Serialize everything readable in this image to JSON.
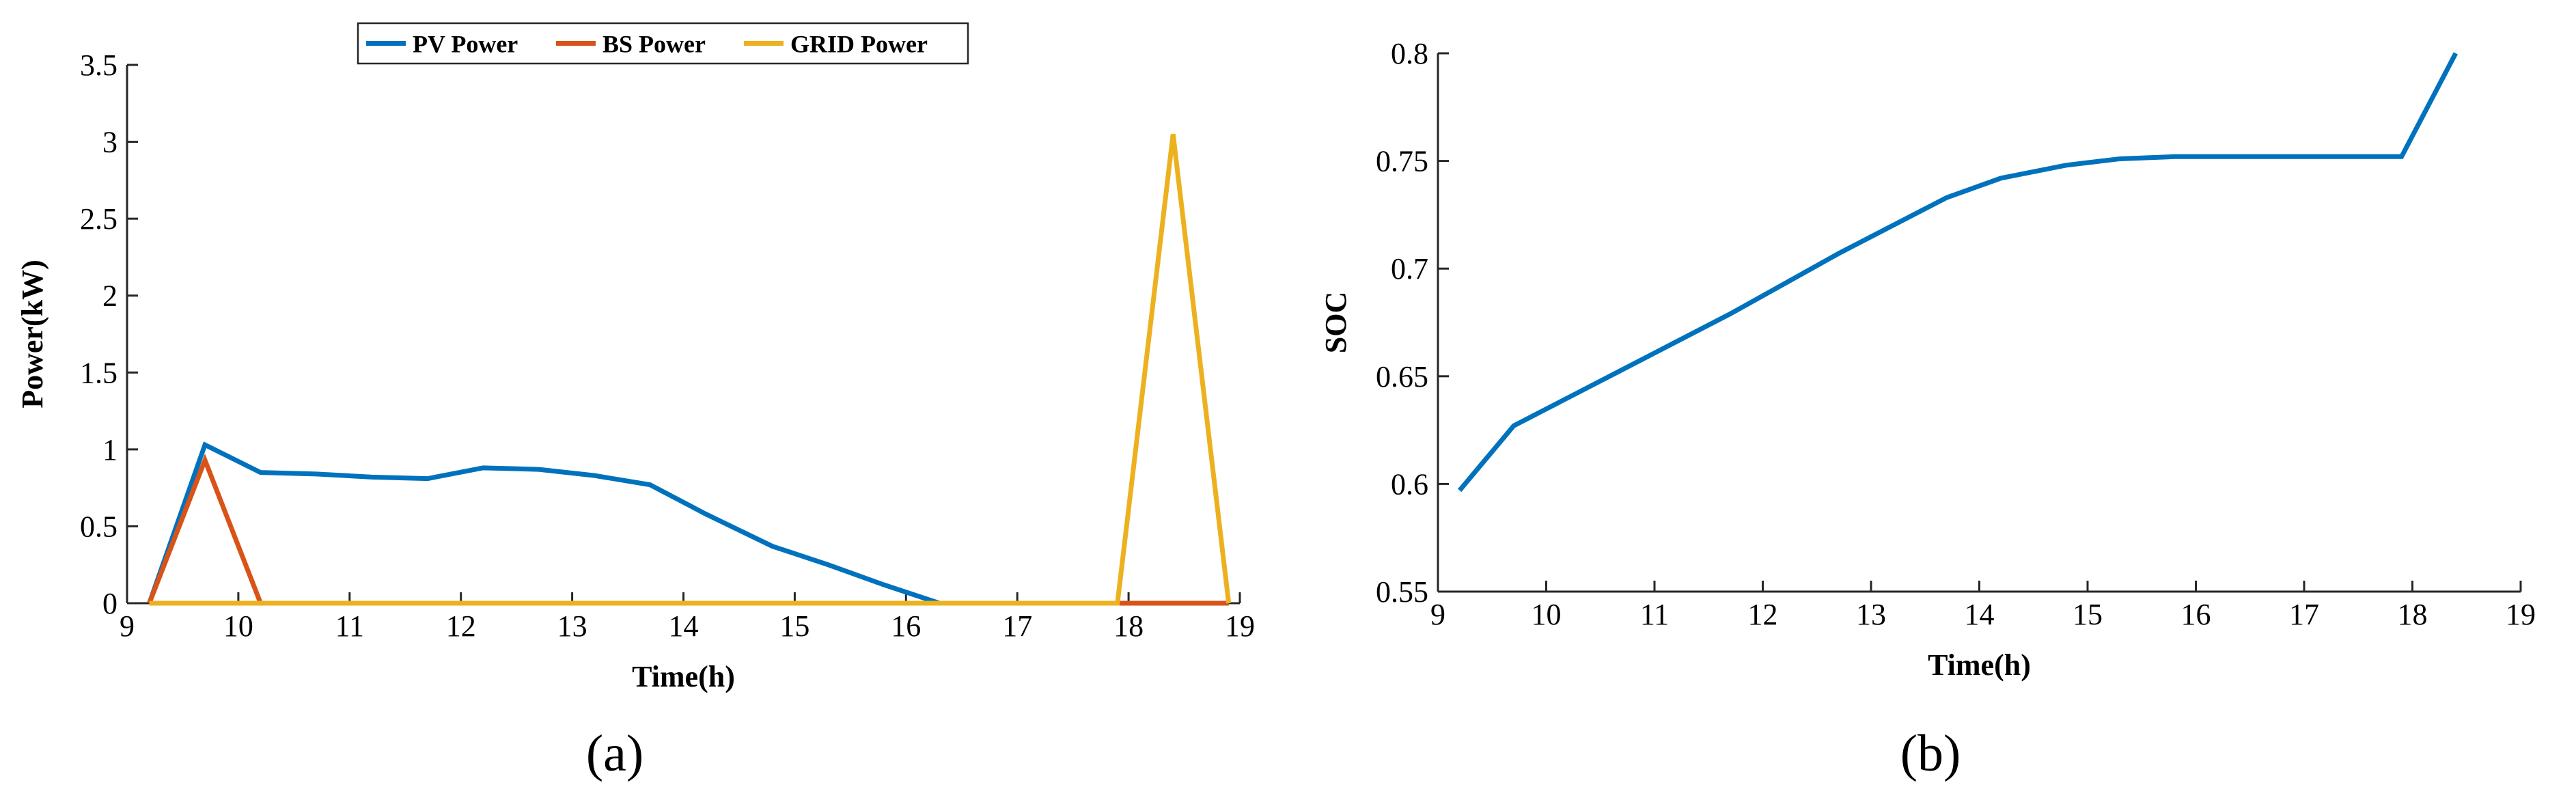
{
  "chart_data": [
    {
      "type": "line",
      "caption": "(a)",
      "xlabel": "Time(h)",
      "ylabel": "Power(kW)",
      "xlim": [
        9,
        19
      ],
      "ylim": [
        0,
        3.5
      ],
      "xticks": [
        9,
        10,
        11,
        12,
        13,
        14,
        15,
        16,
        17,
        18,
        19
      ],
      "yticks": [
        0,
        0.5,
        1,
        1.5,
        2,
        2.5,
        3,
        3.5
      ],
      "xtick_labels": [
        "9",
        "10",
        "11",
        "12",
        "13",
        "14",
        "15",
        "16",
        "17",
        "18",
        "19"
      ],
      "ytick_labels": [
        "0",
        "0.5",
        "1",
        "1.5",
        "2",
        "2.5",
        "3",
        "3.5"
      ],
      "legend_position": "top-center",
      "series": [
        {
          "name": "PV Power",
          "color": "#0072BD",
          "x": [
            9.2,
            9.7,
            10.2,
            10.7,
            11.2,
            11.7,
            12.2,
            12.7,
            13.2,
            13.7,
            14.2,
            14.8,
            15.3,
            15.8,
            16.3,
            16.8,
            17.3,
            17.9,
            18.4,
            18.9
          ],
          "y": [
            0,
            1.03,
            0.85,
            0.84,
            0.82,
            0.81,
            0.88,
            0.87,
            0.83,
            0.77,
            0.58,
            0.37,
            0.25,
            0.12,
            0,
            0,
            0,
            0,
            0,
            0
          ]
        },
        {
          "name": "BS Power",
          "color": "#D95319",
          "x": [
            9.2,
            9.7,
            10.2,
            10.7,
            11.2,
            11.7,
            12.2,
            12.7,
            13.2,
            13.7,
            14.2,
            14.8,
            15.3,
            15.8,
            16.3,
            16.8,
            17.3,
            17.9,
            18.4,
            18.9
          ],
          "y": [
            0,
            0.93,
            0,
            0,
            0,
            0,
            0,
            0,
            0,
            0,
            0,
            0,
            0,
            0,
            0,
            0,
            0,
            0,
            0,
            0
          ]
        },
        {
          "name": "GRID Power",
          "color": "#EDB120",
          "x": [
            9.2,
            9.7,
            10.2,
            10.7,
            11.2,
            11.7,
            12.2,
            12.7,
            13.2,
            13.7,
            14.2,
            14.8,
            15.3,
            15.8,
            16.3,
            16.8,
            17.3,
            17.9,
            18.4,
            18.9
          ],
          "y": [
            0,
            0,
            0,
            0,
            0,
            0,
            0,
            0,
            0,
            0,
            0,
            0,
            0,
            0,
            0,
            0,
            0,
            0,
            3.05,
            0
          ]
        }
      ]
    },
    {
      "type": "line",
      "caption": "(b)",
      "xlabel": "Time(h)",
      "ylabel": "SOC",
      "xlim": [
        9,
        19
      ],
      "ylim": [
        0.55,
        0.8
      ],
      "xticks": [
        9,
        10,
        11,
        12,
        13,
        14,
        15,
        16,
        17,
        18,
        19
      ],
      "yticks": [
        0.55,
        0.6,
        0.65,
        0.7,
        0.75,
        0.8
      ],
      "xtick_labels": [
        "9",
        "10",
        "11",
        "12",
        "13",
        "14",
        "15",
        "16",
        "17",
        "18",
        "19"
      ],
      "ytick_labels": [
        "0.55",
        "0.6",
        "0.65",
        "0.7",
        "0.75",
        "0.8"
      ],
      "series": [
        {
          "color": "#0072BD",
          "x": [
            9.2,
            9.7,
            10.2,
            10.7,
            11.2,
            11.7,
            12.2,
            12.7,
            13.2,
            13.7,
            14.2,
            14.8,
            15.3,
            15.8,
            16.3,
            16.8,
            17.3,
            17.9,
            18.4
          ],
          "y": [
            0.597,
            0.627,
            0.64,
            0.653,
            0.666,
            0.679,
            0.693,
            0.707,
            0.72,
            0.733,
            0.742,
            0.748,
            0.751,
            0.752,
            0.752,
            0.752,
            0.752,
            0.752,
            0.8
          ]
        }
      ]
    }
  ]
}
